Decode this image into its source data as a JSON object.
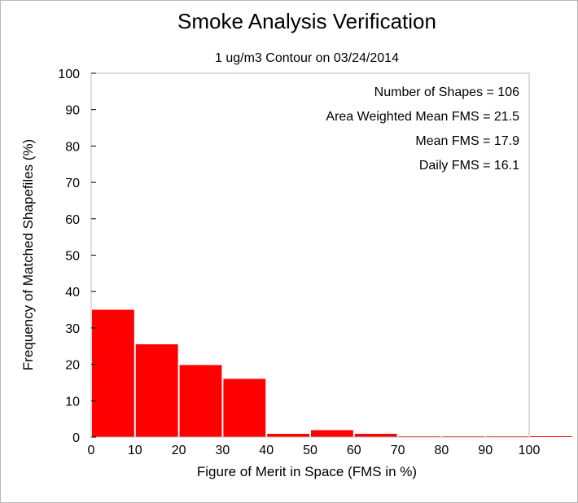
{
  "chart_data": {
    "type": "bar",
    "title": "Smoke Analysis Verification",
    "subtitle": "1 ug/m3 Contour on 03/24/2014",
    "xlabel": "Figure of Merit in Space (FMS in %)",
    "ylabel": "Frequency of Matched Shapefiles (%)",
    "xlim": [
      0,
      100
    ],
    "ylim": [
      0,
      100
    ],
    "xticks": [
      "0",
      "10",
      "20",
      "30",
      "40",
      "50",
      "60",
      "70",
      "80",
      "90",
      "100"
    ],
    "yticks": [
      "0",
      "10",
      "20",
      "30",
      "40",
      "50",
      "60",
      "70",
      "80",
      "90",
      "100"
    ],
    "bins": [
      [
        0,
        10
      ],
      [
        10,
        20
      ],
      [
        20,
        30
      ],
      [
        30,
        40
      ],
      [
        40,
        50
      ],
      [
        50,
        60
      ],
      [
        60,
        70
      ],
      [
        70,
        80
      ],
      [
        80,
        90
      ],
      [
        90,
        100
      ],
      [
        100,
        110
      ]
    ],
    "values": [
      35,
      25.5,
      19.8,
      16,
      0.9,
      1.9,
      0.9,
      0,
      0,
      0,
      0
    ],
    "grid": false,
    "bar_color": "#ff0000",
    "stats": [
      "Number of Shapes = 106",
      "Area Weighted Mean FMS = 21.5",
      "Mean FMS = 17.9",
      "Daily FMS = 16.1"
    ]
  }
}
